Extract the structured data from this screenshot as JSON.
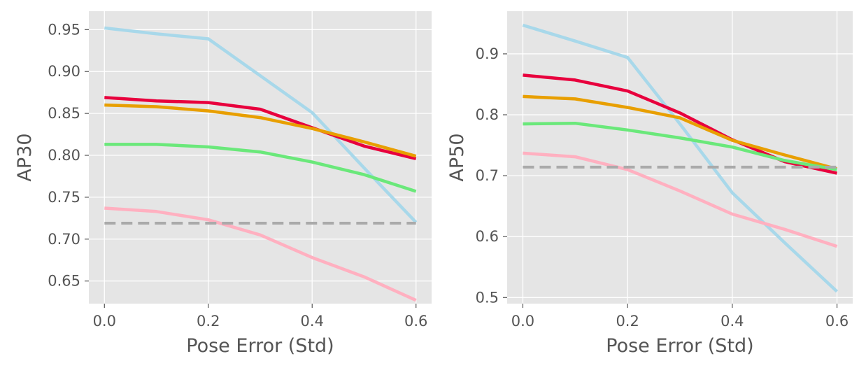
{
  "chart_data": [
    {
      "type": "line",
      "xlabel": "Pose Error (Std)",
      "ylabel": "AP30",
      "xlim": [
        -0.03,
        0.63
      ],
      "ylim": [
        0.623,
        0.972
      ],
      "xticks": [
        "0.0",
        "0.2",
        "0.4",
        "0.6"
      ],
      "xtick_values": [
        0.0,
        0.2,
        0.4,
        0.6
      ],
      "yticks": [
        "0.65",
        "0.70",
        "0.75",
        "0.80",
        "0.85",
        "0.90",
        "0.95"
      ],
      "ytick_values": [
        0.65,
        0.7,
        0.75,
        0.8,
        0.85,
        0.9,
        0.95
      ],
      "grid": true,
      "series": [
        {
          "name": "light-blue",
          "color": "#a8d8ea",
          "x": [
            0.0,
            0.1,
            0.2,
            0.3,
            0.4,
            0.5,
            0.6
          ],
          "y": [
            0.952,
            0.945,
            0.939,
            0.895,
            0.851,
            0.785,
            0.72
          ]
        },
        {
          "name": "red",
          "color": "#e8003d",
          "x": [
            0.0,
            0.1,
            0.2,
            0.3,
            0.4,
            0.5,
            0.6
          ],
          "y": [
            0.869,
            0.865,
            0.863,
            0.855,
            0.833,
            0.811,
            0.796
          ]
        },
        {
          "name": "orange",
          "color": "#e89f00",
          "x": [
            0.0,
            0.1,
            0.2,
            0.3,
            0.4,
            0.5,
            0.6
          ],
          "y": [
            0.86,
            0.858,
            0.853,
            0.845,
            0.832,
            0.816,
            0.799
          ]
        },
        {
          "name": "green",
          "color": "#6ae87a",
          "x": [
            0.0,
            0.1,
            0.2,
            0.3,
            0.4,
            0.5,
            0.6
          ],
          "y": [
            0.813,
            0.813,
            0.81,
            0.804,
            0.792,
            0.777,
            0.757
          ]
        },
        {
          "name": "pink",
          "color": "#ffb0c0",
          "x": [
            0.0,
            0.1,
            0.2,
            0.3,
            0.4,
            0.5,
            0.6
          ],
          "y": [
            0.737,
            0.733,
            0.723,
            0.705,
            0.678,
            0.655,
            0.627
          ]
        },
        {
          "name": "baseline",
          "color": "#aaaaaa",
          "dashed": true,
          "x": [
            0.0,
            0.6
          ],
          "y": [
            0.719,
            0.719
          ]
        }
      ]
    },
    {
      "type": "line",
      "xlabel": "Pose Error (Std)",
      "ylabel": "AP50",
      "xlim": [
        -0.03,
        0.63
      ],
      "ylim": [
        0.49,
        0.97
      ],
      "xticks": [
        "0.0",
        "0.2",
        "0.4",
        "0.6"
      ],
      "xtick_values": [
        0.0,
        0.2,
        0.4,
        0.6
      ],
      "yticks": [
        "0.5",
        "0.6",
        "0.7",
        "0.8",
        "0.9"
      ],
      "ytick_values": [
        0.5,
        0.6,
        0.7,
        0.8,
        0.9
      ],
      "grid": true,
      "series": [
        {
          "name": "light-blue",
          "color": "#a8d8ea",
          "x": [
            0.0,
            0.1,
            0.2,
            0.3,
            0.4,
            0.5,
            0.6
          ],
          "y": [
            0.947,
            0.921,
            0.894,
            0.785,
            0.672,
            0.59,
            0.51
          ]
        },
        {
          "name": "red",
          "color": "#e8003d",
          "x": [
            0.0,
            0.1,
            0.2,
            0.3,
            0.4,
            0.5,
            0.6
          ],
          "y": [
            0.865,
            0.857,
            0.839,
            0.803,
            0.759,
            0.723,
            0.704
          ]
        },
        {
          "name": "orange",
          "color": "#e89f00",
          "x": [
            0.0,
            0.1,
            0.2,
            0.3,
            0.4,
            0.5,
            0.6
          ],
          "y": [
            0.83,
            0.826,
            0.812,
            0.795,
            0.758,
            0.734,
            0.711
          ]
        },
        {
          "name": "green",
          "color": "#6ae87a",
          "x": [
            0.0,
            0.1,
            0.2,
            0.3,
            0.4,
            0.5,
            0.6
          ],
          "y": [
            0.785,
            0.786,
            0.775,
            0.762,
            0.747,
            0.725,
            0.71
          ]
        },
        {
          "name": "pink",
          "color": "#ffb0c0",
          "x": [
            0.0,
            0.1,
            0.2,
            0.3,
            0.4,
            0.5,
            0.6
          ],
          "y": [
            0.737,
            0.731,
            0.71,
            0.675,
            0.637,
            0.612,
            0.584
          ]
        },
        {
          "name": "baseline",
          "color": "#aaaaaa",
          "dashed": true,
          "x": [
            0.0,
            0.6
          ],
          "y": [
            0.714,
            0.714
          ]
        }
      ]
    }
  ]
}
